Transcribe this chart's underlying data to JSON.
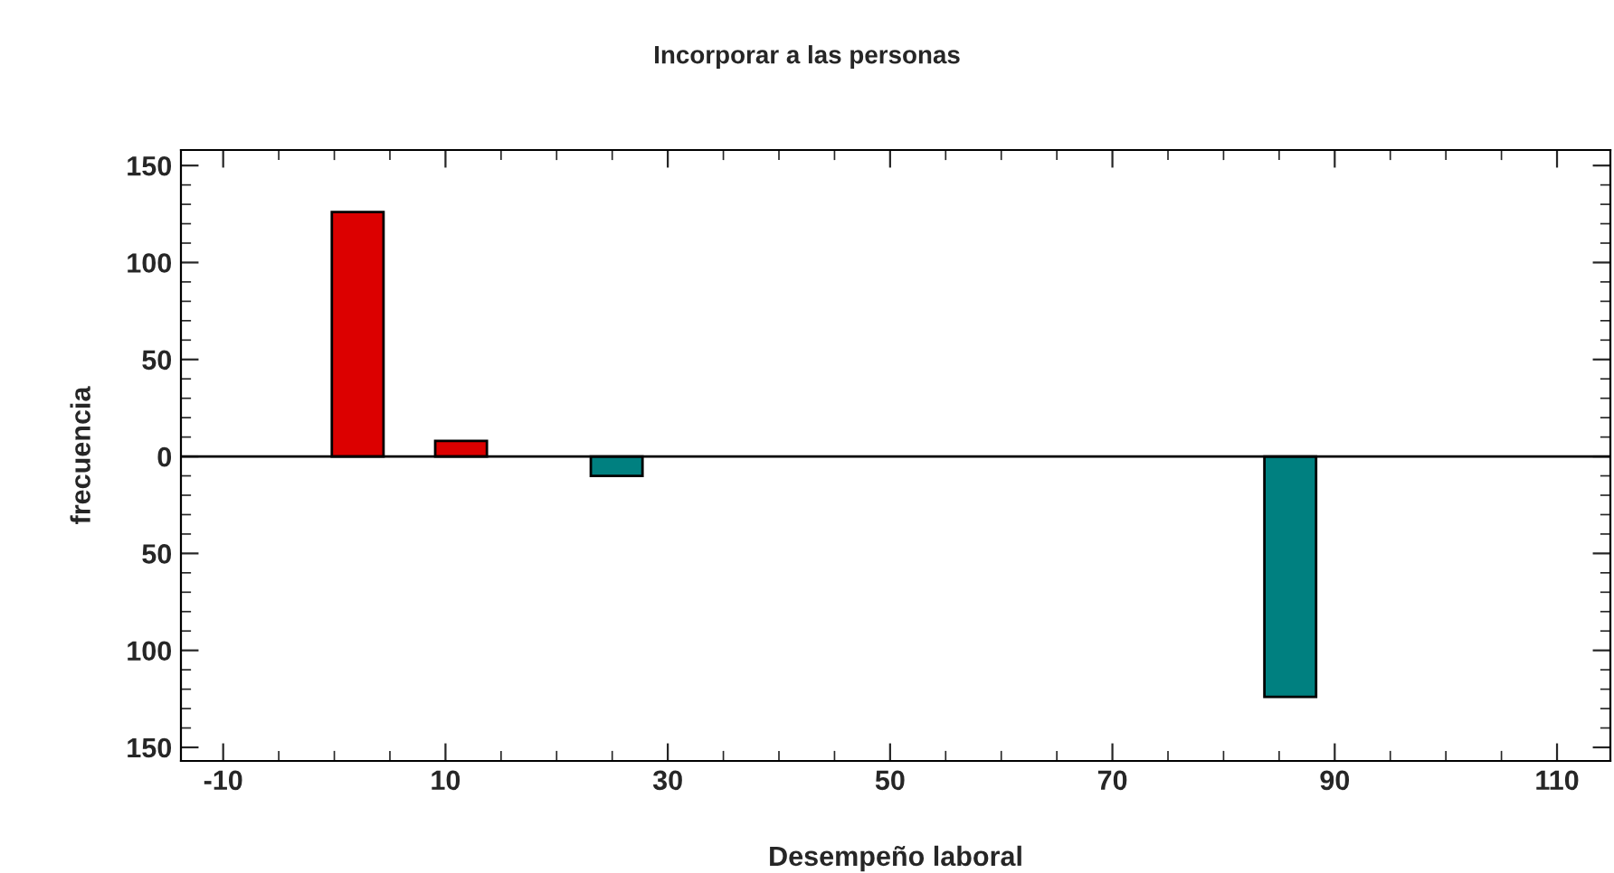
{
  "chart_data": {
    "type": "bar",
    "title": "Incorporar a las personas",
    "xlabel": "Desempeño laboral",
    "ylabel": "frecuencia",
    "x": [
      2.1,
      11.4,
      25.4,
      86.0
    ],
    "series": [
      {
        "color": "#dc0000",
        "values": [
          126,
          8,
          null,
          null
        ]
      },
      {
        "color": "#008080",
        "values": [
          null,
          null,
          -10,
          -124
        ]
      }
    ],
    "xlim": [
      -13.8,
      114.8
    ],
    "xticks": [
      -10,
      10,
      30,
      50,
      70,
      90,
      110
    ],
    "ylim": [
      -157,
      158
    ],
    "yticks": [
      {
        "value": -150,
        "label": "150"
      },
      {
        "value": -100,
        "label": "100"
      },
      {
        "value": -50,
        "label": "50"
      },
      0,
      50,
      100,
      150
    ],
    "legend": false
  }
}
